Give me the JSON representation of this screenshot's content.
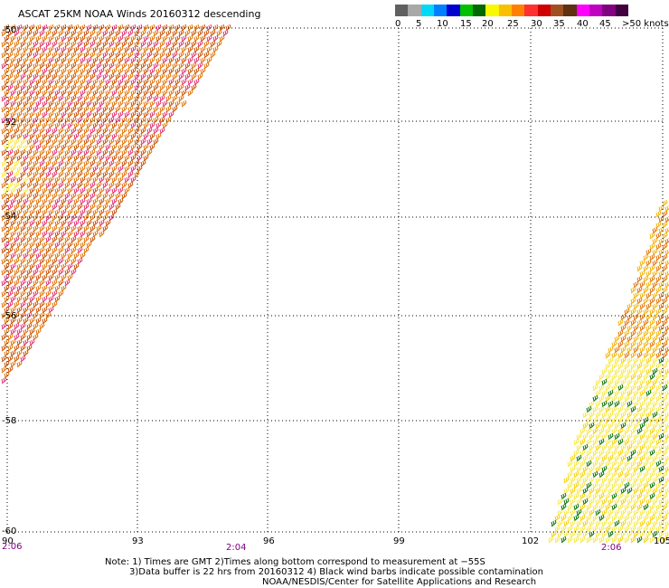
{
  "title": "ASCAT 25KM NOAA Winds 20160312 descending",
  "legend": {
    "colors": [
      "#606060",
      "#a8a8a8",
      "#00d8f8",
      "#0080ff",
      "#0000d0",
      "#00c000",
      "#006800",
      "#f8f800",
      "#f8c000",
      "#ff8000",
      "#ff3030",
      "#d00000",
      "#a05020",
      "#603010",
      "#ff00ff",
      "#c000c0",
      "#800080",
      "#400040"
    ],
    "labels": [
      "0",
      "5",
      "10",
      "15",
      "20",
      "25",
      "30",
      "35",
      "40",
      "45",
      ">50 knots"
    ]
  },
  "axes": {
    "lon_labels": [
      "90",
      "93",
      "96",
      "99",
      "102",
      "105"
    ],
    "lat_labels": [
      "-50",
      "-52",
      "-54",
      "-56",
      "-58",
      "-60"
    ],
    "lon_range": [
      90,
      105
    ],
    "lat_range": [
      -50,
      -60
    ]
  },
  "pass_times": [
    "2:06",
    "2:04",
    "2:06"
  ],
  "notes": {
    "line1": "Note: 1) Times are GMT 2)Times along bottom correspond to measurement at −55S",
    "line2": "3)Data buffer is 22 hrs from 20160312 4) Black wind barbs indicate possible contamination",
    "line3": "NOAA/NESDIS/Center for Satellite Applications and Research"
  },
  "palette": {
    "orange": "#e07000",
    "dark_orange": "#c85000",
    "pink": "#e03070",
    "yellow": "#f8e840",
    "green": "#007000",
    "time_color": "#800080"
  }
}
